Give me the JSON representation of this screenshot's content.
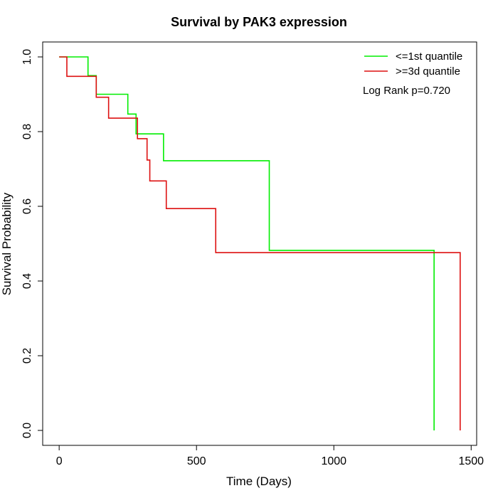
{
  "chart_data": {
    "type": "line",
    "step": true,
    "title": "Survival by PAK3 expression",
    "xlabel": "Time (Days)",
    "ylabel": "Survival Probability",
    "xlim": [
      -60,
      1520
    ],
    "ylim": [
      -0.04,
      1.04
    ],
    "xticks": [
      0,
      500,
      1000,
      1500
    ],
    "yticks": [
      0.0,
      0.2,
      0.4,
      0.6,
      0.8,
      1.0
    ],
    "xtick_labels": [
      "0",
      "500",
      "1000",
      "1500"
    ],
    "ytick_labels": [
      "0.0",
      "0.2",
      "0.4",
      "0.6",
      "0.8",
      "1.0"
    ],
    "grid": false,
    "legend_position": "top-right",
    "annotation": "Log Rank p=0.720",
    "series": [
      {
        "name": "<=1st quantile",
        "color": "#00ee00",
        "x": [
          0,
          105,
          135,
          250,
          280,
          380,
          765,
          1365,
          1365
        ],
        "y": [
          1.0,
          0.95,
          0.9,
          0.847,
          0.794,
          0.722,
          0.482,
          0.482,
          0.0
        ]
      },
      {
        "name": ">=3d quantile",
        "color": "#dd1111",
        "x": [
          0,
          28,
          135,
          180,
          285,
          320,
          330,
          390,
          570,
          1460,
          1460
        ],
        "y": [
          1.0,
          0.948,
          0.892,
          0.836,
          0.781,
          0.724,
          0.668,
          0.594,
          0.476,
          0.476,
          0.0
        ]
      }
    ]
  }
}
